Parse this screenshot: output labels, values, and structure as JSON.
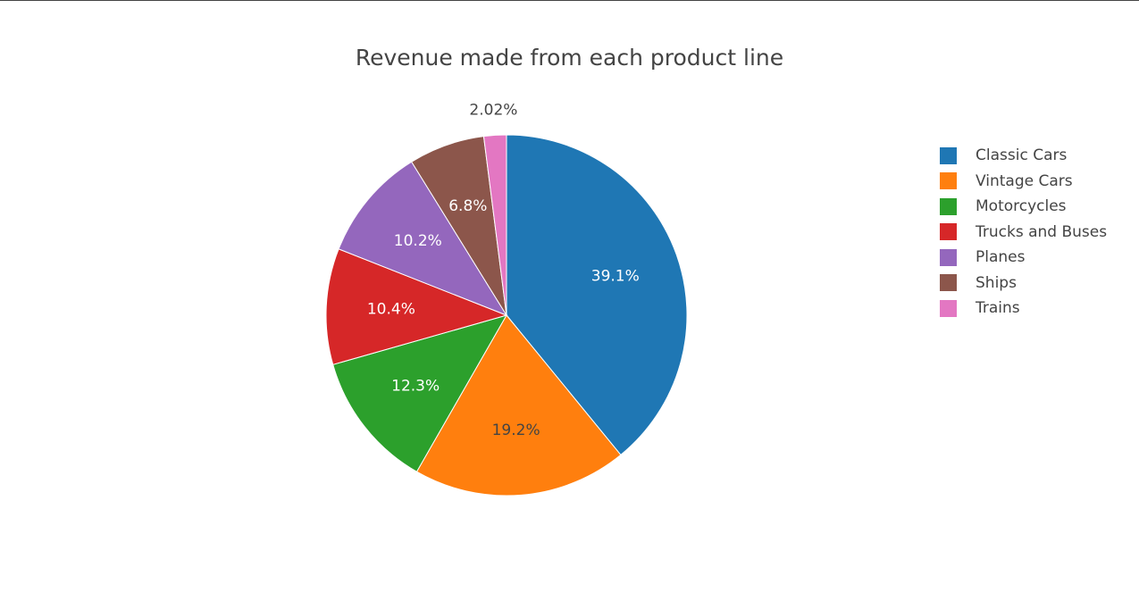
{
  "chart_data": {
    "type": "pie",
    "title": "Revenue made from each product line",
    "slices": [
      {
        "label": "Classic Cars",
        "value": 39.1,
        "text": "39.1%",
        "color": "#1f77b4",
        "text_color": "#ffffff"
      },
      {
        "label": "Vintage Cars",
        "value": 19.2,
        "text": "19.2%",
        "color": "#ff7f0e",
        "text_color": "#444444"
      },
      {
        "label": "Motorcycles",
        "value": 12.3,
        "text": "12.3%",
        "color": "#2ca02c",
        "text_color": "#ffffff"
      },
      {
        "label": "Trucks and Buses",
        "value": 10.4,
        "text": "10.4%",
        "color": "#d62728",
        "text_color": "#ffffff"
      },
      {
        "label": "Planes",
        "value": 10.2,
        "text": "10.2%",
        "color": "#9467bd",
        "text_color": "#ffffff"
      },
      {
        "label": "Ships",
        "value": 6.8,
        "text": "6.8%",
        "color": "#8c564b",
        "text_color": "#ffffff"
      },
      {
        "label": "Trains",
        "value": 2.02,
        "text": "2.02%",
        "color": "#e377c2",
        "text_color": "#444444"
      }
    ],
    "legend_position": "right",
    "label_type": "percent",
    "sort": "descending",
    "direction": "clockwise",
    "start": "top"
  }
}
